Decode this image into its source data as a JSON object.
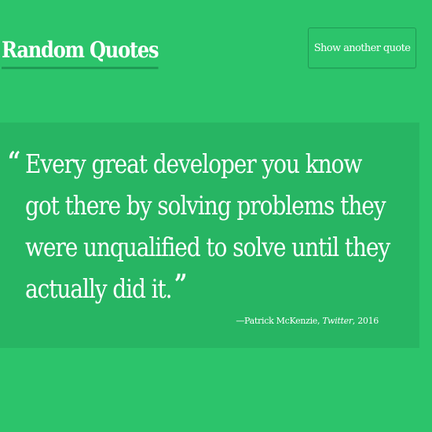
{
  "header": {
    "title": "Random Quotes",
    "button_label": "Show another quote"
  },
  "quote": {
    "open_mark": "“",
    "text": "Every great developer you know got there by solving problems they were unqualified to solve until they actually did it.",
    "close_mark": "”",
    "author_prefix": "—",
    "author": "Patrick McKenzie",
    "separator1": ", ",
    "source": "Twitter",
    "separator2": ", ",
    "year": "2016"
  },
  "colors": {
    "background": "#2cc46b",
    "card": "#27b563",
    "accent": "#1f9b55",
    "text": "#ffffff"
  }
}
